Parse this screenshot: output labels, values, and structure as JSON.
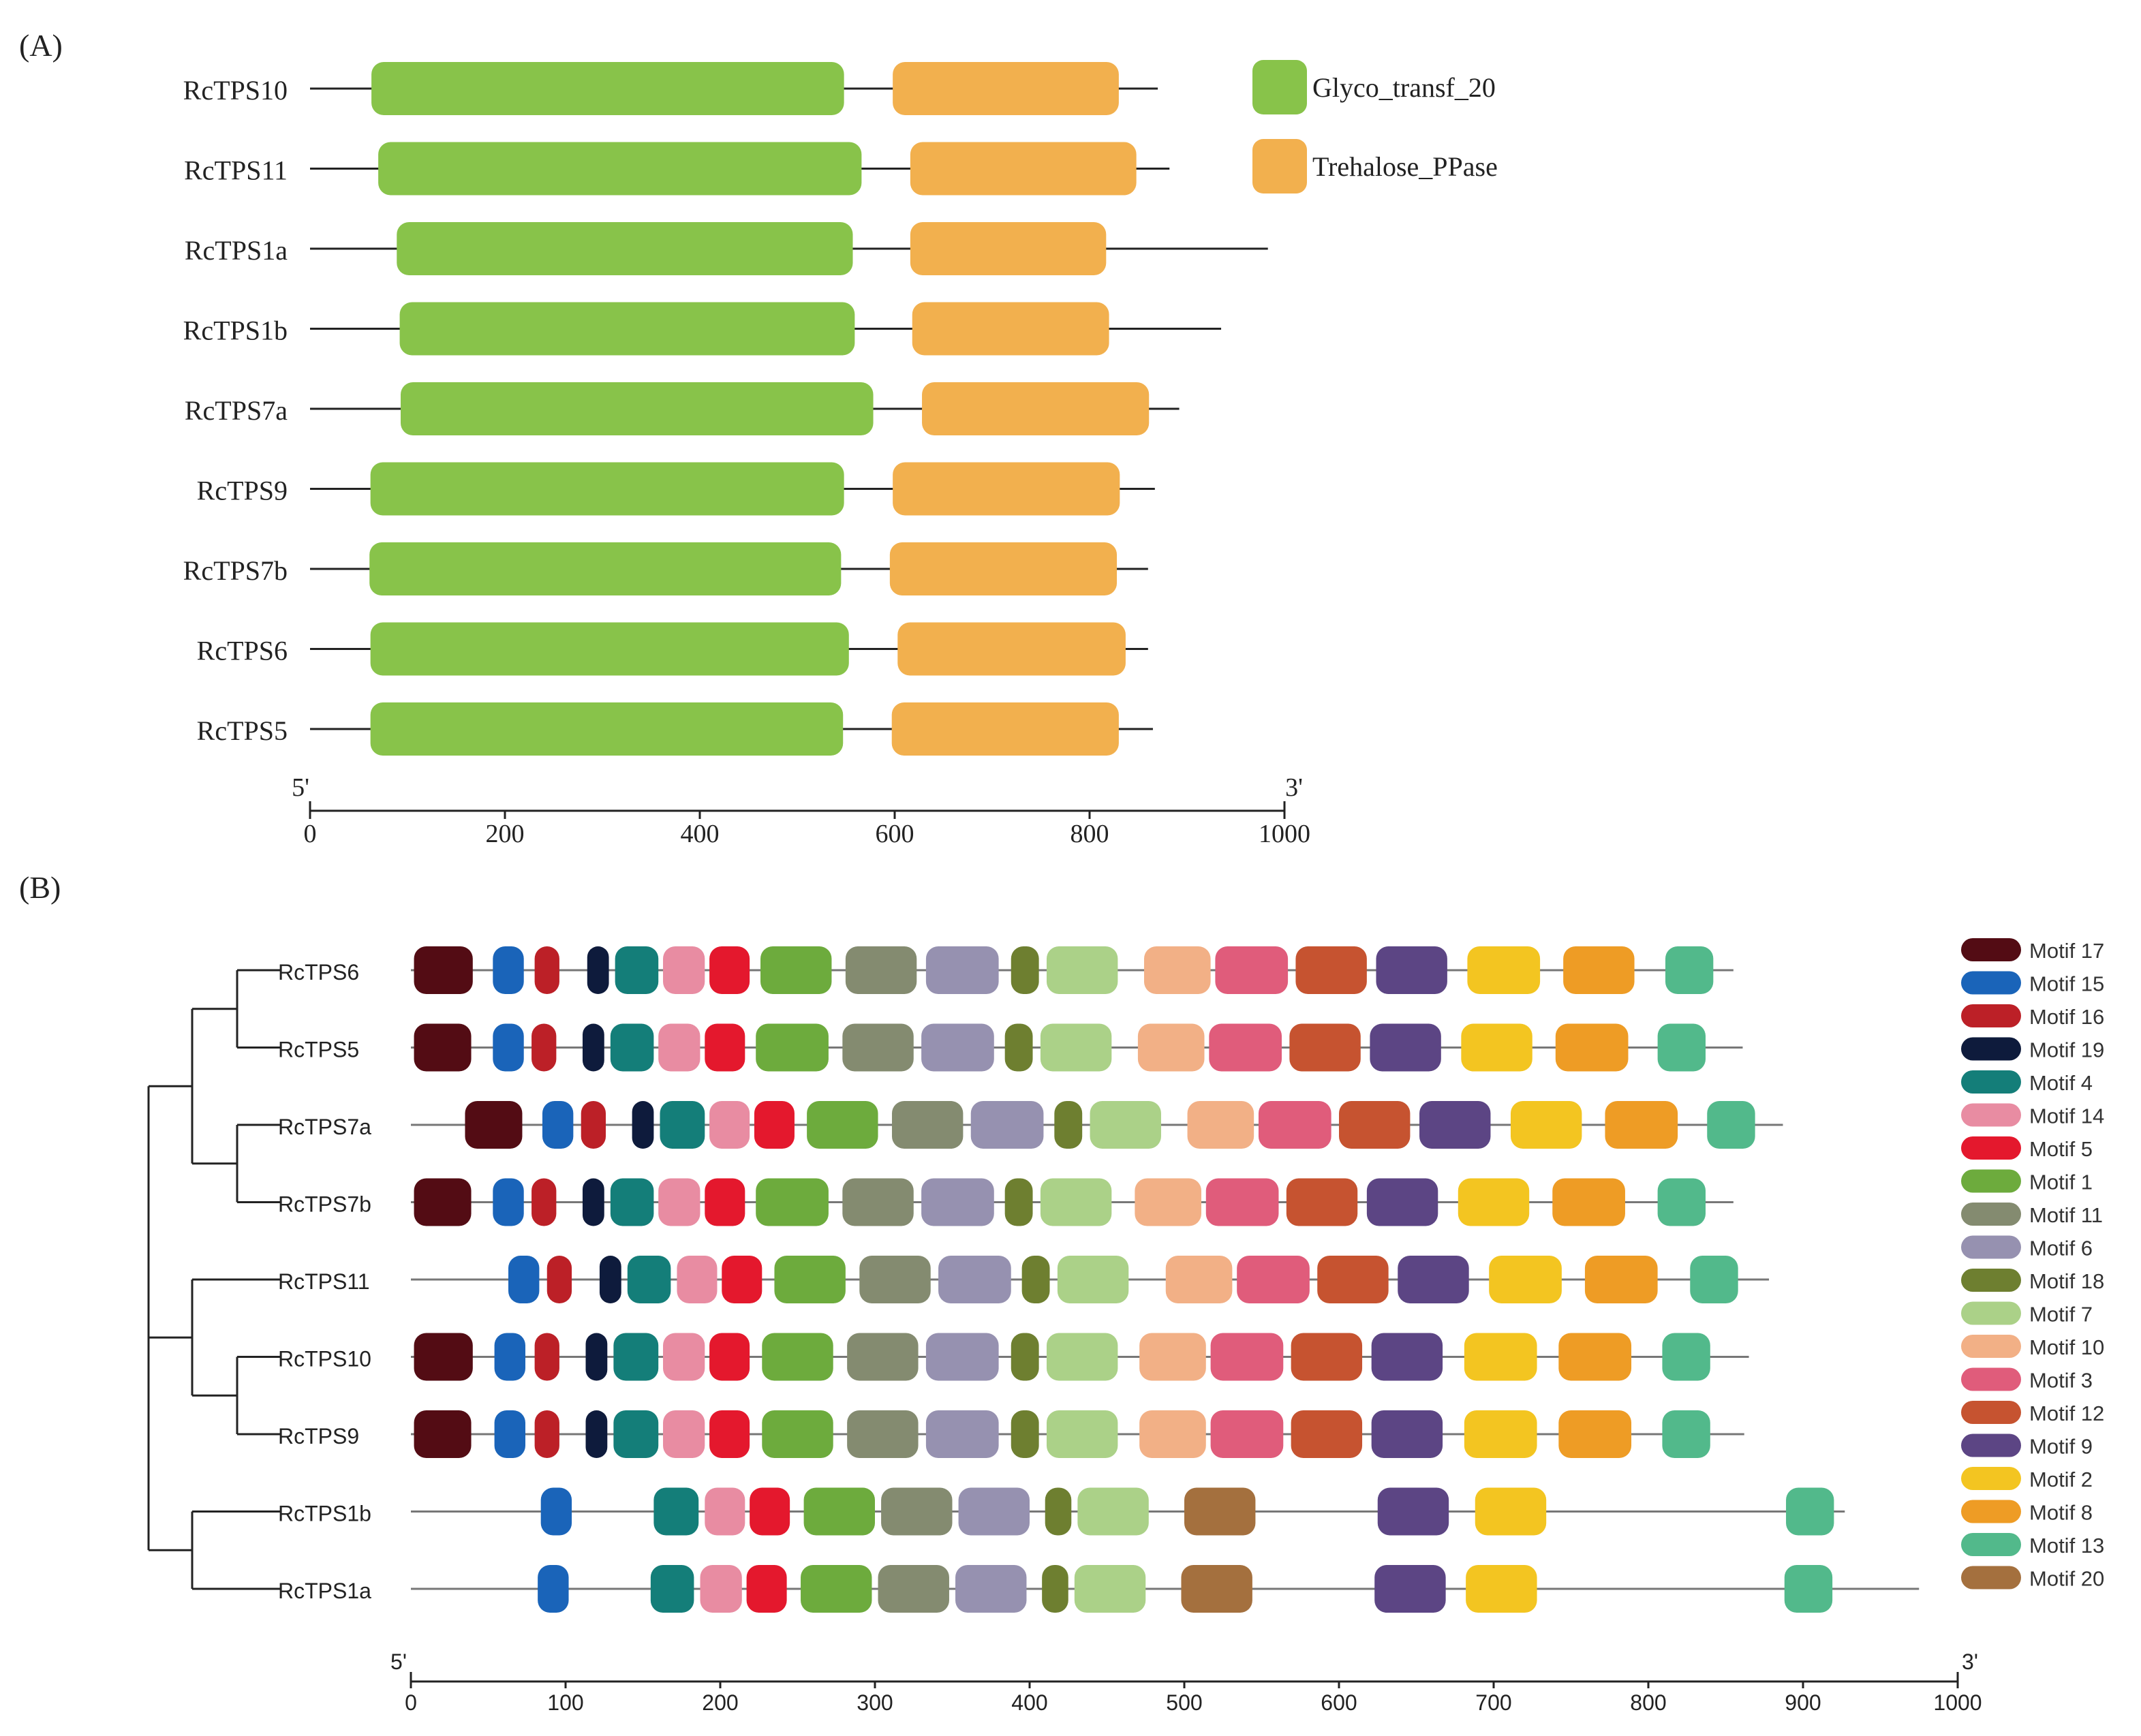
{
  "panel_a": {
    "label": "(A)",
    "axis": {
      "min": 0,
      "max": 1000,
      "ticks": [
        0,
        200,
        400,
        600,
        800,
        1000
      ],
      "left_end": "5'",
      "right_end": "3'"
    },
    "legend": [
      {
        "name": "Glyco_transf_20",
        "color": "#88c34a"
      },
      {
        "name": "Trehalose_PPase",
        "color": "#f2b04e"
      }
    ],
    "proteins": [
      {
        "name": "RcTPS10",
        "length": 870,
        "domains": [
          {
            "domain": "Glyco_transf_20",
            "start": 63,
            "end": 548
          },
          {
            "domain": "Trehalose_PPase",
            "start": 598,
            "end": 830
          }
        ]
      },
      {
        "name": "RcTPS11",
        "length": 882,
        "domains": [
          {
            "domain": "Glyco_transf_20",
            "start": 70,
            "end": 566
          },
          {
            "domain": "Trehalose_PPase",
            "start": 616,
            "end": 848
          }
        ]
      },
      {
        "name": "RcTPS1a",
        "length": 983,
        "domains": [
          {
            "domain": "Glyco_transf_20",
            "start": 89,
            "end": 557
          },
          {
            "domain": "Trehalose_PPase",
            "start": 616,
            "end": 817
          }
        ]
      },
      {
        "name": "RcTPS1b",
        "length": 935,
        "domains": [
          {
            "domain": "Glyco_transf_20",
            "start": 92,
            "end": 559
          },
          {
            "domain": "Trehalose_PPase",
            "start": 618,
            "end": 820
          }
        ]
      },
      {
        "name": "RcTPS7a",
        "length": 892,
        "domains": [
          {
            "domain": "Glyco_transf_20",
            "start": 93,
            "end": 578
          },
          {
            "domain": "Trehalose_PPase",
            "start": 628,
            "end": 861
          }
        ]
      },
      {
        "name": "RcTPS9",
        "length": 867,
        "domains": [
          {
            "domain": "Glyco_transf_20",
            "start": 62,
            "end": 548
          },
          {
            "domain": "Trehalose_PPase",
            "start": 598,
            "end": 831
          }
        ]
      },
      {
        "name": "RcTPS7b",
        "length": 860,
        "domains": [
          {
            "domain": "Glyco_transf_20",
            "start": 61,
            "end": 545
          },
          {
            "domain": "Trehalose_PPase",
            "start": 595,
            "end": 828
          }
        ]
      },
      {
        "name": "RcTPS6",
        "length": 860,
        "domains": [
          {
            "domain": "Glyco_transf_20",
            "start": 62,
            "end": 553
          },
          {
            "domain": "Trehalose_PPase",
            "start": 603,
            "end": 837
          }
        ]
      },
      {
        "name": "RcTPS5",
        "length": 865,
        "domains": [
          {
            "domain": "Glyco_transf_20",
            "start": 62,
            "end": 547
          },
          {
            "domain": "Trehalose_PPase",
            "start": 597,
            "end": 830
          }
        ]
      }
    ]
  },
  "panel_b": {
    "label": "(B)",
    "axis": {
      "min": 0,
      "max": 1000,
      "ticks": [
        0,
        100,
        200,
        300,
        400,
        500,
        600,
        700,
        800,
        900,
        1000
      ],
      "left_end": "5'",
      "right_end": "3'"
    },
    "legend": [
      {
        "name": "Motif 17",
        "color": "#530c14"
      },
      {
        "name": "Motif 15",
        "color": "#1a64b9"
      },
      {
        "name": "Motif 16",
        "color": "#bc2027"
      },
      {
        "name": "Motif 19",
        "color": "#0e1b3c"
      },
      {
        "name": "Motif 4",
        "color": "#147e79"
      },
      {
        "name": "Motif 14",
        "color": "#e88ca2"
      },
      {
        "name": "Motif 5",
        "color": "#e4182d"
      },
      {
        "name": "Motif 1",
        "color": "#6dab3d"
      },
      {
        "name": "Motif 11",
        "color": "#848b70"
      },
      {
        "name": "Motif 6",
        "color": "#9691b0"
      },
      {
        "name": "Motif 18",
        "color": "#6e7f30"
      },
      {
        "name": "Motif 7",
        "color": "#abd188"
      },
      {
        "name": "Motif 10",
        "color": "#f2b086"
      },
      {
        "name": "Motif 3",
        "color": "#e05c7b"
      },
      {
        "name": "Motif 12",
        "color": "#c65330"
      },
      {
        "name": "Motif 9",
        "color": "#5c4584"
      },
      {
        "name": "Motif 2",
        "color": "#f3c521"
      },
      {
        "name": "Motif 8",
        "color": "#ee9c25"
      },
      {
        "name": "Motif 13",
        "color": "#52b98b"
      },
      {
        "name": "Motif 20",
        "color": "#a4703e"
      }
    ],
    "proteins": [
      {
        "name": "RcTPS6",
        "length": 855,
        "motifs": [
          [
            "Motif 17",
            2,
            40
          ],
          [
            "Motif 15",
            53,
            73
          ],
          [
            "Motif 16",
            80,
            96
          ],
          [
            "Motif 19",
            114,
            128
          ],
          [
            "Motif 4",
            132,
            160
          ],
          [
            "Motif 14",
            163,
            190
          ],
          [
            "Motif 5",
            193,
            219
          ],
          [
            "Motif 1",
            226,
            272
          ],
          [
            "Motif 11",
            281,
            327
          ],
          [
            "Motif 6",
            333,
            380
          ],
          [
            "Motif 18",
            388,
            406
          ],
          [
            "Motif 7",
            411,
            457
          ],
          [
            "Motif 10",
            474,
            517
          ],
          [
            "Motif 3",
            520,
            567
          ],
          [
            "Motif 12",
            572,
            618
          ],
          [
            "Motif 9",
            624,
            670
          ],
          [
            "Motif 2",
            683,
            730
          ],
          [
            "Motif 8",
            745,
            791
          ],
          [
            "Motif 13",
            811,
            842
          ]
        ]
      },
      {
        "name": "RcTPS5",
        "length": 861,
        "motifs": [
          [
            "Motif 17",
            2,
            39
          ],
          [
            "Motif 15",
            53,
            73
          ],
          [
            "Motif 16",
            78,
            94
          ],
          [
            "Motif 19",
            111,
            125
          ],
          [
            "Motif 4",
            129,
            157
          ],
          [
            "Motif 14",
            160,
            187
          ],
          [
            "Motif 5",
            190,
            216
          ],
          [
            "Motif 1",
            223,
            270
          ],
          [
            "Motif 11",
            279,
            325
          ],
          [
            "Motif 6",
            330,
            377
          ],
          [
            "Motif 18",
            384,
            402
          ],
          [
            "Motif 7",
            407,
            453
          ],
          [
            "Motif 10",
            470,
            513
          ],
          [
            "Motif 3",
            516,
            563
          ],
          [
            "Motif 12",
            568,
            614
          ],
          [
            "Motif 9",
            620,
            666
          ],
          [
            "Motif 2",
            679,
            725
          ],
          [
            "Motif 8",
            740,
            787
          ],
          [
            "Motif 13",
            806,
            837
          ]
        ]
      },
      {
        "name": "RcTPS7a",
        "length": 887,
        "motifs": [
          [
            "Motif 17",
            35,
            72
          ],
          [
            "Motif 15",
            85,
            105
          ],
          [
            "Motif 16",
            110,
            126
          ],
          [
            "Motif 19",
            143,
            157
          ],
          [
            "Motif 4",
            161,
            190
          ],
          [
            "Motif 14",
            193,
            219
          ],
          [
            "Motif 5",
            222,
            248
          ],
          [
            "Motif 1",
            256,
            302
          ],
          [
            "Motif 11",
            311,
            357
          ],
          [
            "Motif 6",
            362,
            409
          ],
          [
            "Motif 18",
            416,
            434
          ],
          [
            "Motif 7",
            439,
            485
          ],
          [
            "Motif 10",
            502,
            545
          ],
          [
            "Motif 3",
            548,
            595
          ],
          [
            "Motif 12",
            600,
            646
          ],
          [
            "Motif 9",
            652,
            698
          ],
          [
            "Motif 2",
            711,
            757
          ],
          [
            "Motif 8",
            772,
            819
          ],
          [
            "Motif 13",
            838,
            869
          ]
        ]
      },
      {
        "name": "RcTPS7b",
        "length": 855,
        "motifs": [
          [
            "Motif 17",
            2,
            39
          ],
          [
            "Motif 15",
            53,
            73
          ],
          [
            "Motif 16",
            78,
            94
          ],
          [
            "Motif 19",
            111,
            125
          ],
          [
            "Motif 4",
            129,
            157
          ],
          [
            "Motif 14",
            160,
            187
          ],
          [
            "Motif 5",
            190,
            216
          ],
          [
            "Motif 1",
            223,
            270
          ],
          [
            "Motif 11",
            279,
            325
          ],
          [
            "Motif 6",
            330,
            377
          ],
          [
            "Motif 18",
            384,
            402
          ],
          [
            "Motif 7",
            407,
            453
          ],
          [
            "Motif 10",
            468,
            511
          ],
          [
            "Motif 3",
            514,
            561
          ],
          [
            "Motif 12",
            566,
            612
          ],
          [
            "Motif 9",
            618,
            664
          ],
          [
            "Motif 2",
            677,
            723
          ],
          [
            "Motif 8",
            738,
            785
          ],
          [
            "Motif 13",
            806,
            837
          ]
        ]
      },
      {
        "name": "RcTPS11",
        "length": 878,
        "motifs": [
          [
            "Motif 15",
            63,
            83
          ],
          [
            "Motif 16",
            88,
            104
          ],
          [
            "Motif 19",
            122,
            136
          ],
          [
            "Motif 4",
            140,
            168
          ],
          [
            "Motif 14",
            172,
            198
          ],
          [
            "Motif 5",
            201,
            227
          ],
          [
            "Motif 1",
            235,
            281
          ],
          [
            "Motif 11",
            290,
            336
          ],
          [
            "Motif 6",
            341,
            388
          ],
          [
            "Motif 18",
            395,
            413
          ],
          [
            "Motif 7",
            418,
            464
          ],
          [
            "Motif 10",
            488,
            531
          ],
          [
            "Motif 3",
            534,
            581
          ],
          [
            "Motif 12",
            586,
            632
          ],
          [
            "Motif 9",
            638,
            684
          ],
          [
            "Motif 2",
            697,
            744
          ],
          [
            "Motif 8",
            759,
            806
          ],
          [
            "Motif 13",
            827,
            858
          ]
        ]
      },
      {
        "name": "RcTPS10",
        "length": 865,
        "motifs": [
          [
            "Motif 17",
            2,
            40
          ],
          [
            "Motif 15",
            54,
            74
          ],
          [
            "Motif 16",
            80,
            96
          ],
          [
            "Motif 19",
            113,
            127
          ],
          [
            "Motif 4",
            131,
            160
          ],
          [
            "Motif 14",
            163,
            190
          ],
          [
            "Motif 5",
            193,
            219
          ],
          [
            "Motif 1",
            227,
            273
          ],
          [
            "Motif 11",
            282,
            328
          ],
          [
            "Motif 6",
            333,
            380
          ],
          [
            "Motif 18",
            388,
            406
          ],
          [
            "Motif 7",
            411,
            457
          ],
          [
            "Motif 10",
            471,
            514
          ],
          [
            "Motif 3",
            517,
            564
          ],
          [
            "Motif 12",
            569,
            615
          ],
          [
            "Motif 9",
            621,
            667
          ],
          [
            "Motif 2",
            681,
            728
          ],
          [
            "Motif 8",
            742,
            789
          ],
          [
            "Motif 13",
            809,
            840
          ]
        ]
      },
      {
        "name": "RcTPS9",
        "length": 862,
        "motifs": [
          [
            "Motif 17",
            2,
            39
          ],
          [
            "Motif 15",
            54,
            74
          ],
          [
            "Motif 16",
            80,
            96
          ],
          [
            "Motif 19",
            113,
            127
          ],
          [
            "Motif 4",
            131,
            160
          ],
          [
            "Motif 14",
            163,
            190
          ],
          [
            "Motif 5",
            193,
            219
          ],
          [
            "Motif 1",
            227,
            273
          ],
          [
            "Motif 11",
            282,
            328
          ],
          [
            "Motif 6",
            333,
            380
          ],
          [
            "Motif 18",
            388,
            406
          ],
          [
            "Motif 7",
            411,
            457
          ],
          [
            "Motif 10",
            471,
            514
          ],
          [
            "Motif 3",
            517,
            564
          ],
          [
            "Motif 12",
            569,
            615
          ],
          [
            "Motif 9",
            621,
            667
          ],
          [
            "Motif 2",
            681,
            728
          ],
          [
            "Motif 8",
            742,
            789
          ],
          [
            "Motif 13",
            809,
            840
          ]
        ]
      },
      {
        "name": "RcTPS1b",
        "length": 927,
        "motifs": [
          [
            "Motif 15",
            84,
            104
          ],
          [
            "Motif 4",
            157,
            186
          ],
          [
            "Motif 14",
            190,
            216
          ],
          [
            "Motif 5",
            219,
            245
          ],
          [
            "Motif 1",
            254,
            300
          ],
          [
            "Motif 11",
            304,
            350
          ],
          [
            "Motif 6",
            354,
            400
          ],
          [
            "Motif 18",
            410,
            427
          ],
          [
            "Motif 7",
            431,
            477
          ],
          [
            "Motif 20",
            500,
            546
          ],
          [
            "Motif 9",
            625,
            671
          ],
          [
            "Motif 2",
            688,
            734
          ],
          [
            "Motif 13",
            889,
            920
          ]
        ]
      },
      {
        "name": "RcTPS1a",
        "length": 975,
        "motifs": [
          [
            "Motif 15",
            82,
            102
          ],
          [
            "Motif 4",
            155,
            183
          ],
          [
            "Motif 14",
            187,
            214
          ],
          [
            "Motif 5",
            217,
            243
          ],
          [
            "Motif 1",
            252,
            298
          ],
          [
            "Motif 11",
            302,
            348
          ],
          [
            "Motif 6",
            352,
            398
          ],
          [
            "Motif 18",
            408,
            425
          ],
          [
            "Motif 7",
            429,
            475
          ],
          [
            "Motif 20",
            498,
            544
          ],
          [
            "Motif 9",
            623,
            669
          ],
          [
            "Motif 2",
            682,
            728
          ],
          [
            "Motif 13",
            888,
            919
          ]
        ]
      }
    ]
  }
}
